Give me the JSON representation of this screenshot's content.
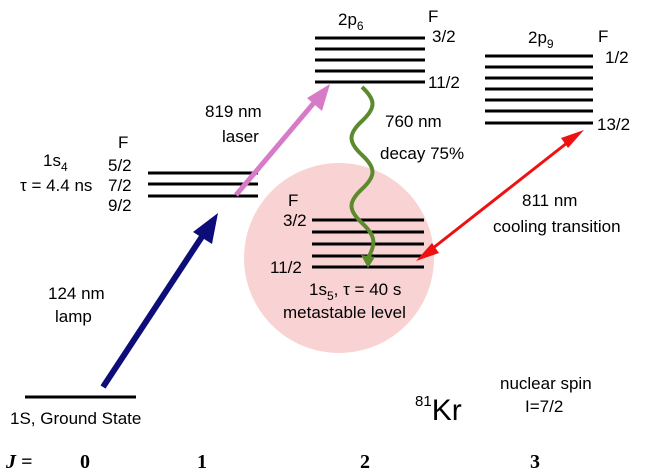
{
  "states": {
    "ground": {
      "label": "1S, Ground State"
    },
    "s4": {
      "name_main": "1s",
      "name_sub": "4",
      "lifetime": "τ = 4.4 ns",
      "F_header": "F",
      "F_values": [
        "5/2",
        "7/2",
        "9/2"
      ]
    },
    "p6": {
      "name_main": "2p",
      "name_sub": "6",
      "F_header": "F",
      "F_top": "3/2",
      "F_bottom": "11/2"
    },
    "p9": {
      "name_main": "2p",
      "name_sub": "9",
      "F_header": "F",
      "F_top": "1/2",
      "F_bottom": "13/2"
    },
    "s5": {
      "F_header": "F",
      "F_top": "3/2",
      "F_bottom": "11/2",
      "name_main": "1s",
      "name_sub": "5",
      "name_rest": ", τ = 40 s",
      "line2": "metastable level"
    }
  },
  "transitions": {
    "lamp": {
      "line1": "124 nm",
      "line2": "lamp",
      "color": "#0d0d7a"
    },
    "laser": {
      "line1": "819 nm",
      "line2": "laser",
      "color": "#d77bc8"
    },
    "decay": {
      "line1": "760 nm",
      "line2": "decay 75%",
      "color": "#5e8a2e"
    },
    "cooling": {
      "line1": "811 nm",
      "line2": "cooling transition",
      "color": "#ee1111"
    }
  },
  "isotope": {
    "mass": "81",
    "symbol": "Kr",
    "spin_line1": "nuclear spin",
    "spin_line2": "I=7/2"
  },
  "j_axis": {
    "label": "J =",
    "values": [
      "0",
      "1",
      "2",
      "3"
    ]
  },
  "colors": {
    "metastable_circle": "#f9d3d3",
    "level": "#000000"
  }
}
